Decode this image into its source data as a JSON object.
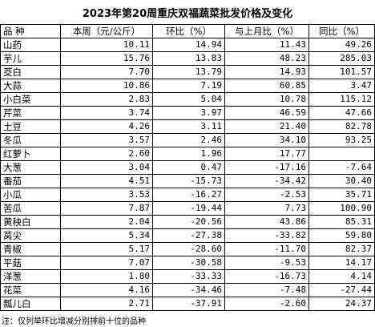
{
  "header": {
    "title": "2023年第20周重庆双福蔬菜批发价格及变化"
  },
  "table": {
    "columns": [
      "品 种",
      "本周（元/公斤）",
      "环比（%）",
      "与上月比（%）",
      "同比（%）"
    ],
    "rows": [
      [
        "山药",
        "10.11",
        "14.94",
        "11.43",
        "49.26"
      ],
      [
        "芋儿",
        "15.76",
        "13.83",
        "48.23",
        "285.03"
      ],
      [
        "茭白",
        "7.70",
        "13.79",
        "14.93",
        "101.57"
      ],
      [
        "大蒜",
        "10.86",
        "7.19",
        "60.85",
        "3.47"
      ],
      [
        "小白菜",
        "2.83",
        "5.04",
        "10.78",
        "115.12"
      ],
      [
        "芹菜",
        "3.74",
        "3.97",
        "46.59",
        "47.66"
      ],
      [
        "土豆",
        "4.26",
        "3.11",
        "21.40",
        "82.78"
      ],
      [
        "冬瓜",
        "3.57",
        "2.46",
        "34.10",
        "93.25"
      ],
      [
        "红萝卜",
        "2.60",
        "1.96",
        "17.77",
        null
      ],
      [
        "大葱",
        "3.04",
        "0.47",
        "-17.16",
        "-7.64"
      ],
      [
        "番茄",
        "4.51",
        "-15.73",
        "-34.42",
        "30.40"
      ],
      [
        "小瓜",
        "3.53",
        "-16.27",
        "-2.53",
        "35.71"
      ],
      [
        "苦瓜",
        "7.87",
        "-19.44",
        "7.73",
        "100.90"
      ],
      [
        "黄秧白",
        "2.04",
        "-20.56",
        "43.86",
        "85.31"
      ],
      [
        "莴尖",
        "5.34",
        "-27.38",
        "-33.82",
        "59.80"
      ],
      [
        "青椒",
        "5.17",
        "-28.60",
        "-11.70",
        "82.37"
      ],
      [
        "平菇",
        "7.07",
        "-30.58",
        "-9.53",
        "14.17"
      ],
      [
        "洋葱",
        "1.80",
        "-33.33",
        "-16.73",
        "4.14"
      ],
      [
        "花菜",
        "4.16",
        "-34.46",
        "-7.48",
        "-27.44"
      ],
      [
        "瓢儿白",
        "2.71",
        "-37.91",
        "-2.60",
        "24.37"
      ]
    ]
  },
  "footer": {
    "note": "注：仅列举环比增减分别排前十位的品种"
  }
}
